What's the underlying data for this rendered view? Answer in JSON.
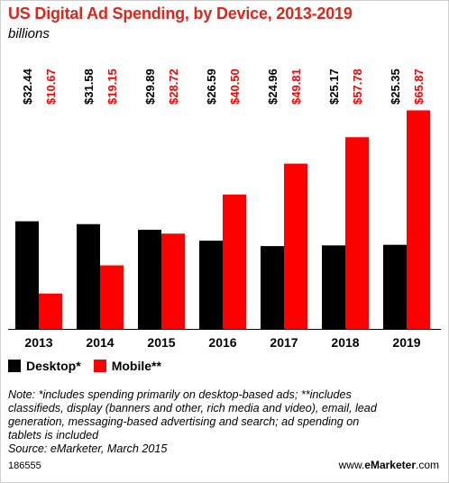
{
  "header": {
    "title": "US Digital Ad Spending, by Device, 2013-2019",
    "subtitle": "billions"
  },
  "chart_data": {
    "type": "bar",
    "title": "US Digital Ad Spending, by Device, 2013-2019",
    "subtitle": "billions",
    "categories": [
      "2013",
      "2014",
      "2015",
      "2016",
      "2017",
      "2018",
      "2019"
    ],
    "series": [
      {
        "name": "Desktop*",
        "color": "#000000",
        "values": [
          32.44,
          31.58,
          29.89,
          26.59,
          24.96,
          25.17,
          25.35
        ],
        "labels": [
          "$32.44",
          "$31.58",
          "$29.89",
          "$26.59",
          "$24.96",
          "$25.17",
          "$25.35"
        ]
      },
      {
        "name": "Mobile**",
        "color": "#ff0000",
        "values": [
          10.67,
          19.15,
          28.72,
          40.5,
          49.81,
          57.78,
          65.87
        ],
        "labels": [
          "$10.67",
          "$19.15",
          "$28.72",
          "$40.50",
          "$49.81",
          "$57.78",
          "$65.87"
        ]
      }
    ],
    "ylim": [
      0,
      66
    ],
    "xlabel": "",
    "ylabel": "",
    "grid": false,
    "legend_placement": "bottom-left"
  },
  "legend": {
    "desktop_label": "Desktop*",
    "mobile_label": "Mobile**",
    "desktop_color": "#000000",
    "mobile_color": "#ff0000"
  },
  "note": {
    "lines": [
      "Note: *includes spending primarily on desktop-based ads; **includes",
      "classifieds, display (banners and other, rich media and video), email, lead",
      "generation, messaging-based advertising and search; ad spending on",
      "tablets is included",
      "Source: eMarketer, March 2015"
    ]
  },
  "footer": {
    "chart_id": "186555",
    "brand_prefix": "www.",
    "brand_name": "eMarketer",
    "brand_suffix": ".com"
  }
}
